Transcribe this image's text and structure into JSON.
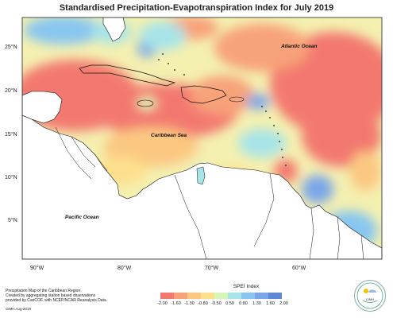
{
  "title": "Standardised Precipitation-Evapotranspiration Index for July 2019",
  "labels": {
    "caribbean_sea": "Caribbean Sea",
    "atlantic_ocean": "Atlantic Ocean",
    "pacific_ocean": "Pacific Ocean"
  },
  "lat_ticks": [
    "25°N",
    "20°N",
    "15°N",
    "10°N",
    "5°N"
  ],
  "lon_ticks": [
    "90°W",
    "80°W",
    "70°W",
    "60°W"
  ],
  "legend": {
    "title": "SPEI Index",
    "values": [
      "-2.00",
      "-1.60",
      "-1.30",
      "-0.80",
      "-0.50",
      "0.50",
      "0.80",
      "1.30",
      "1.60",
      "2.00"
    ],
    "colors": [
      "#f3796f",
      "#f8a279",
      "#fbc882",
      "#fde08e",
      "#f4f0b0",
      "#d8f5b8",
      "#a7e4e8",
      "#88c6f0",
      "#7aa6e8",
      "#5f87d8"
    ]
  },
  "credits": {
    "line1": "Precipitation Map of the Caribbean Region.",
    "line2": "Created by aggregating station based observations",
    "line3": "provided by CariCOF, with NCEP/NCAR Reanalysis Data.",
    "footer": "CIMH Aug-2019"
  },
  "logo": {
    "text": "CIMH"
  }
}
